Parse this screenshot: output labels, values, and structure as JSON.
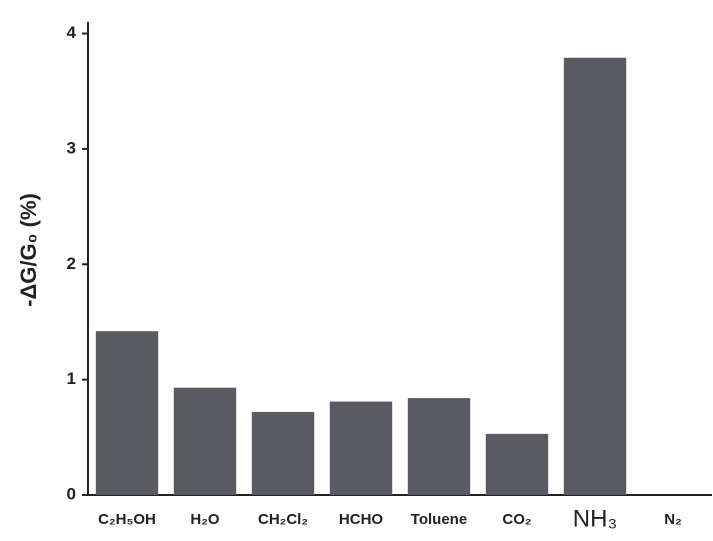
{
  "chart_data": {
    "type": "bar",
    "ylabel": "-ΔG/G₀ (%)",
    "categories": [
      "C₂H₅OH",
      "H₂O",
      "CH₂Cl₂",
      "HCHO",
      "Toluene",
      "CO₂",
      "NH₃",
      "N₂"
    ],
    "values": [
      1.42,
      0.93,
      0.72,
      0.81,
      0.84,
      0.53,
      3.79,
      0
    ],
    "color": "#5a5a62",
    "ylim": [
      0,
      4.1
    ],
    "yticks": [
      0,
      1,
      2,
      3,
      4
    ],
    "grid": false
  }
}
